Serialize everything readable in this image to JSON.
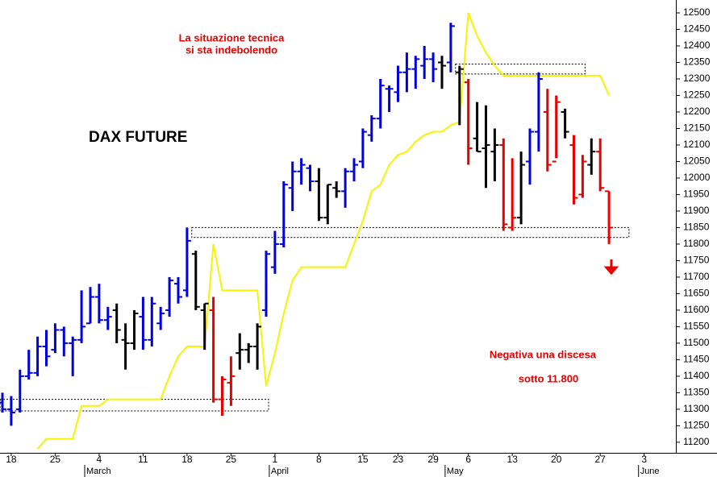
{
  "chart_data": {
    "type": "ohlc",
    "title": "DAX FUTURE",
    "categories": [
      null,
      "18",
      null,
      null,
      null,
      null,
      "25",
      null,
      null,
      null,
      null,
      "4",
      null,
      null,
      null,
      null,
      "11",
      null,
      null,
      null,
      null,
      "18",
      null,
      null,
      null,
      null,
      "25",
      null,
      null,
      null,
      null,
      "1",
      null,
      null,
      null,
      null,
      "8",
      null,
      null,
      null,
      null,
      "15",
      null,
      null,
      null,
      "23",
      null,
      null,
      null,
      "29",
      null,
      null,
      null,
      "6",
      null,
      null,
      null,
      null,
      "13",
      null,
      null,
      null,
      null,
      "20",
      null,
      null,
      null,
      null,
      "27",
      null,
      null,
      null,
      null,
      "3",
      null,
      null,
      null
    ],
    "months": [
      null,
      null,
      null,
      null,
      null,
      null,
      null,
      null,
      null,
      null,
      "March",
      null,
      null,
      null,
      null,
      null,
      null,
      null,
      null,
      null,
      null,
      null,
      null,
      null,
      null,
      null,
      null,
      null,
      null,
      null,
      null,
      "April",
      null,
      null,
      null,
      null,
      null,
      null,
      null,
      null,
      null,
      null,
      null,
      null,
      null,
      null,
      null,
      null,
      null,
      null,
      null,
      "May",
      null,
      null,
      null,
      null,
      null,
      null,
      null,
      null,
      null,
      null,
      null,
      null,
      null,
      null,
      null,
      null,
      null,
      null,
      null,
      null,
      null,
      "June",
      null,
      null,
      null
    ],
    "open": [
      11320,
      11300,
      11300,
      11400,
      11410,
      11490,
      11480,
      11540,
      11500,
      11510,
      11560,
      11640,
      11570,
      11600,
      11510,
      11500,
      11580,
      11510,
      11560,
      11600,
      11680,
      11660,
      11770,
      11600,
      11600,
      11330,
      11380,
      11470,
      11480,
      11490,
      11600,
      11730,
      11800,
      11970,
      12020,
      12030,
      11990,
      11880,
      11970,
      11960,
      12020,
      12050,
      12130,
      12180,
      12270,
      12260,
      12320,
      12330,
      12340,
      12360,
      12350,
      12350,
      12320,
      12290,
      12120,
      12090,
      12080,
      12100,
      11850,
      11880,
      12050,
      12140,
      12200,
      12050,
      12200,
      12100,
      11950,
      12040,
      12080,
      11960,
      null,
      null,
      null,
      null,
      null,
      null,
      null
    ],
    "high": [
      11350,
      11340,
      11420,
      11480,
      11520,
      11540,
      11560,
      11550,
      11520,
      11660,
      11670,
      11680,
      11610,
      11620,
      11560,
      11600,
      11640,
      11640,
      11610,
      11700,
      11700,
      11850,
      11780,
      11620,
      11640,
      11400,
      11460,
      11530,
      11500,
      11560,
      11780,
      11840,
      11990,
      12050,
      12060,
      12040,
      12030,
      11980,
      11990,
      12030,
      12060,
      12150,
      12190,
      12300,
      12280,
      12340,
      12380,
      12370,
      12400,
      12380,
      12370,
      12470,
      12340,
      12300,
      12230,
      12220,
      12150,
      12120,
      12060,
      12080,
      12150,
      12320,
      12270,
      12250,
      12210,
      12130,
      12070,
      12120,
      12120,
      11960,
      null,
      null,
      null,
      null,
      null,
      null,
      null
    ],
    "low": [
      11290,
      11250,
      11290,
      11390,
      11400,
      11430,
      11470,
      11460,
      11400,
      11500,
      11560,
      11560,
      11540,
      11500,
      11420,
      11480,
      11480,
      11490,
      11540,
      11580,
      11620,
      11640,
      11600,
      11480,
      11320,
      11280,
      11310,
      11420,
      11440,
      11420,
      11580,
      11710,
      11790,
      11900,
      11980,
      11960,
      11870,
      11860,
      11940,
      11910,
      11990,
      12030,
      12110,
      12150,
      12200,
      12230,
      12260,
      12270,
      12300,
      12290,
      12270,
      12320,
      12160,
      12040,
      12080,
      11970,
      11990,
      11840,
      11840,
      11860,
      11980,
      12080,
      12020,
      12060,
      12120,
      11920,
      11940,
      12010,
      11960,
      11800,
      null,
      null,
      null,
      null,
      null,
      null,
      null
    ],
    "close": [
      11300,
      11290,
      11400,
      11410,
      11490,
      11460,
      11540,
      11500,
      11510,
      11550,
      11640,
      11570,
      11580,
      11540,
      11500,
      11590,
      11510,
      11620,
      11590,
      11690,
      11640,
      11810,
      11610,
      11620,
      11330,
      11390,
      11400,
      11480,
      11490,
      11550,
      11770,
      11800,
      11980,
      12020,
      12040,
      11990,
      11880,
      11980,
      11960,
      12020,
      12040,
      12140,
      12180,
      12280,
      12270,
      12320,
      12330,
      12360,
      12360,
      12330,
      12340,
      12460,
      12330,
      12090,
      12080,
      12100,
      12100,
      11860,
      11880,
      12040,
      12140,
      12300,
      12040,
      12230,
      12140,
      11940,
      12050,
      12080,
      11970,
      11850,
      null,
      null,
      null,
      null,
      null,
      null,
      null
    ],
    "bar_colors": [
      "#0000dd",
      "#0000dd",
      "#0000dd",
      "#0000dd",
      "#0000dd",
      "#0000dd",
      "#0000dd",
      "#0000dd",
      "#0000dd",
      "#0000dd",
      "#0000dd",
      "#0000dd",
      "#0000dd",
      "#000000",
      "#000000",
      "#000000",
      "#0000dd",
      "#0000dd",
      "#0000dd",
      "#0000dd",
      "#0000dd",
      "#0000dd",
      "#000000",
      "#000000",
      "#e80000",
      "#e80000",
      "#e80000",
      "#000000",
      "#000000",
      "#000000",
      "#0000dd",
      "#0000dd",
      "#0000dd",
      "#0000dd",
      "#0000dd",
      "#0000dd",
      "#000000",
      "#000000",
      "#000000",
      "#0000dd",
      "#0000dd",
      "#0000dd",
      "#0000dd",
      "#0000dd",
      "#0000dd",
      "#0000dd",
      "#0000dd",
      "#0000dd",
      "#0000dd",
      "#0000dd",
      "#000000",
      "#0000dd",
      "#000000",
      "#e80000",
      "#000000",
      "#000000",
      "#000000",
      "#e80000",
      "#e80000",
      "#000000",
      "#0000dd",
      "#0000dd",
      "#e80000",
      "#e80000",
      "#000000",
      "#e80000",
      "#e80000",
      "#000000",
      "#e80000",
      "#e80000",
      null,
      null,
      null,
      null,
      null,
      null,
      null
    ],
    "line": {
      "color": "#f5f500",
      "values": [
        null,
        null,
        null,
        null,
        11180,
        11210,
        11210,
        11210,
        11210,
        11310,
        11310,
        11310,
        11330,
        11330,
        11330,
        11330,
        11330,
        11330,
        11330,
        11400,
        11460,
        11490,
        11490,
        11490,
        11800,
        11660,
        11660,
        11660,
        11660,
        11660,
        11370,
        11470,
        11590,
        11690,
        11730,
        11730,
        11730,
        11730,
        11730,
        11730,
        11800,
        11870,
        11960,
        11980,
        12040,
        12070,
        12080,
        12110,
        12130,
        12140,
        12140,
        12160,
        12170,
        12500,
        12430,
        12380,
        12340,
        12310,
        12310,
        12310,
        12310,
        12310,
        12310,
        12310,
        12310,
        12310,
        12310,
        12310,
        12310,
        12250,
        null,
        null,
        null,
        null,
        null,
        null,
        null
      ]
    },
    "zones": [
      {
        "from": 0,
        "to": 30,
        "low": 11295,
        "high": 11330
      },
      {
        "from": 22,
        "to": 71,
        "low": 11820,
        "high": 11850
      },
      {
        "from": 52,
        "to": 66,
        "low": 12315,
        "high": 12345
      }
    ],
    "annotations": [
      {
        "lines": [
          "La situazione tecnica",
          "si sta indebolendo"
        ],
        "color": "#e80000"
      },
      {
        "lines": [
          "Negativa una discesa",
          "sotto 11.800"
        ],
        "color": "#e80000"
      }
    ],
    "ylim": [
      11168,
      12539
    ],
    "yticks": [
      11200,
      11250,
      11300,
      11350,
      11400,
      11450,
      11500,
      11550,
      11600,
      11650,
      11700,
      11750,
      11800,
      11850,
      11900,
      11950,
      12000,
      12050,
      12100,
      12150,
      12200,
      12250,
      12300,
      12350,
      12400,
      12450,
      12500
    ]
  }
}
